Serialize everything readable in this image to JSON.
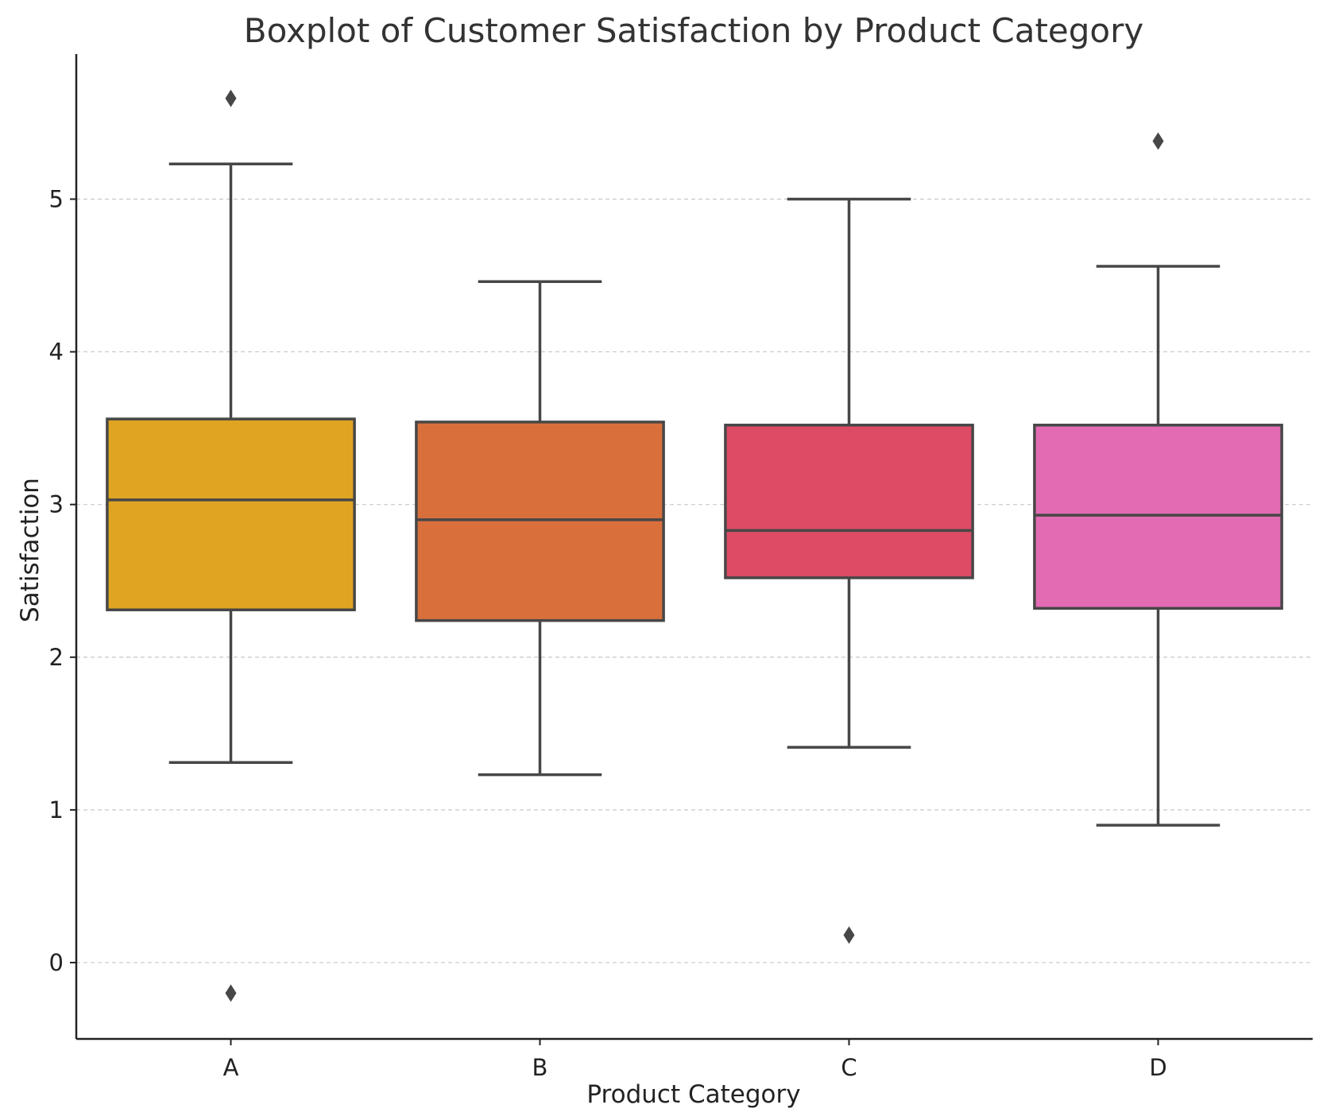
{
  "chart_data": {
    "type": "boxplot",
    "title": "Boxplot of Customer Satisfaction by Product Category",
    "xlabel": "Product Category",
    "ylabel": "Satisfaction",
    "ylim": [
      -0.5,
      5.95
    ],
    "yticks": [
      0,
      1,
      2,
      3,
      4,
      5
    ],
    "grid": "y-dashed",
    "categories": [
      "A",
      "B",
      "C",
      "D"
    ],
    "boxes": [
      {
        "category": "A",
        "whisker_low": 1.31,
        "q1": 2.31,
        "median": 3.03,
        "q3": 3.56,
        "whisker_high": 5.23,
        "outliers": [
          5.66,
          -0.2
        ],
        "color": "#DFA422"
      },
      {
        "category": "B",
        "whisker_low": 1.23,
        "q1": 2.24,
        "median": 2.9,
        "q3": 3.54,
        "whisker_high": 4.46,
        "outliers": [],
        "color": "#D9703C"
      },
      {
        "category": "C",
        "whisker_low": 1.41,
        "q1": 2.52,
        "median": 2.83,
        "q3": 3.52,
        "whisker_high": 5.0,
        "outliers": [
          0.18
        ],
        "color": "#DD4B65"
      },
      {
        "category": "D",
        "whisker_low": 0.9,
        "q1": 2.32,
        "median": 2.93,
        "q3": 3.52,
        "whisker_high": 4.56,
        "outliers": [
          5.38
        ],
        "color": "#E36BB4"
      }
    ]
  }
}
